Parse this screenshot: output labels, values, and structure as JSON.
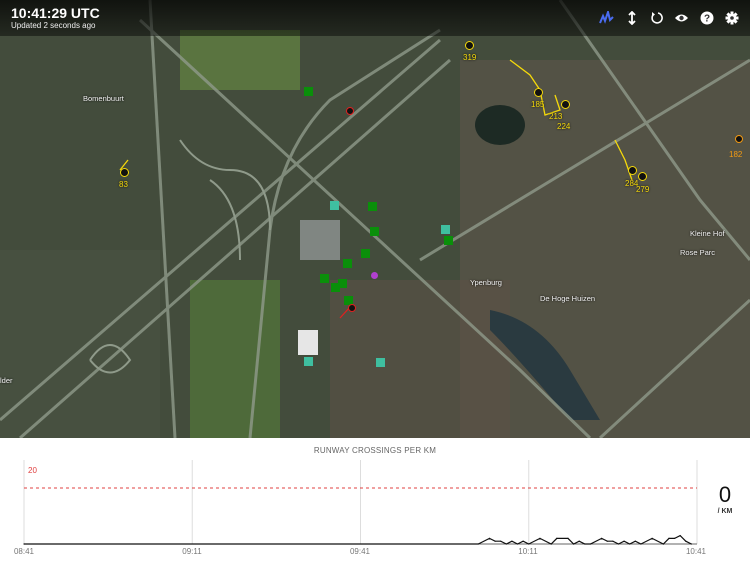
{
  "header": {
    "clock": "10:41:29 UTC",
    "updated": "Updated 2 seconds ago"
  },
  "toolbar": [
    {
      "icon": "activity-chart-icon",
      "active": true,
      "color": "#4a6cf0"
    },
    {
      "icon": "vertical-resize-icon"
    },
    {
      "icon": "refresh-icon"
    },
    {
      "icon": "eye-icon"
    },
    {
      "icon": "help-icon"
    },
    {
      "icon": "gear-icon"
    }
  ],
  "map": {
    "places": [
      "Bomenbuurt",
      "Ypenburg",
      "De Hoge Huizen",
      "Kleine Hof",
      "Rose Parc",
      "lder"
    ],
    "tracked_labels": {
      "a": "319",
      "b": "185",
      "c": "83",
      "d": "284",
      "e": "279",
      "f": "182",
      "g": "213",
      "h": "224"
    },
    "colors": {
      "tracked": "#f5d90a",
      "tracked_alt": "#f29a12",
      "vehicle": "#0a8f0a",
      "station": "#3fbfa0",
      "alert": "#e02020",
      "special": "#b040d0"
    }
  },
  "chart_data": {
    "type": "line",
    "title": "RUNWAY CROSSINGS PER KM",
    "x_ticks": [
      "08:41",
      "09:11",
      "09:41",
      "10:11",
      "10:41"
    ],
    "xlim": [
      "08:41",
      "10:41"
    ],
    "ylim": [
      0,
      30
    ],
    "threshold": {
      "value": 20,
      "label": "20",
      "color": "#e04040",
      "style": "dashed"
    },
    "grid": true,
    "series": [
      {
        "x": [
          "08:41",
          "10:02",
          "10:04",
          "10:05",
          "10:06",
          "10:07",
          "10:08",
          "10:09",
          "10:10",
          "10:11",
          "10:13",
          "10:15",
          "10:16",
          "10:18",
          "10:19",
          "10:20",
          "10:21",
          "10:22",
          "10:24",
          "10:25",
          "10:26",
          "10:27",
          "10:28",
          "10:29",
          "10:30",
          "10:31",
          "10:33",
          "10:35",
          "10:36",
          "10:37",
          "10:38",
          "10:39",
          "10:40"
        ],
        "y": [
          0,
          0,
          2,
          1,
          1,
          0,
          1,
          0,
          1,
          0,
          2,
          0,
          2,
          2,
          0,
          1,
          0,
          0,
          2,
          1,
          1,
          0,
          1,
          0,
          1,
          0,
          2,
          0,
          2,
          2,
          3,
          1,
          0
        ]
      }
    ],
    "current": {
      "value": "0",
      "unit": "/ KM"
    }
  }
}
